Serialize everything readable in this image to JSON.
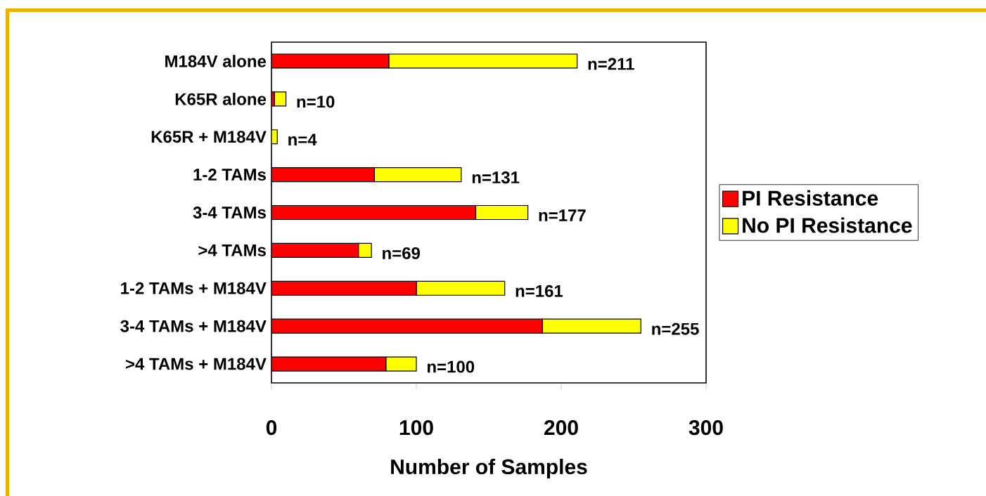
{
  "chart_data": {
    "type": "bar",
    "orientation": "horizontal",
    "stacked": true,
    "categories": [
      "M184V alone",
      "K65R alone",
      "K65R + M184V",
      "1-2 TAMs",
      "3-4 TAMs",
      ">4 TAMs",
      "1-2 TAMs + M184V",
      "3-4 TAMs + M184V",
      ">4 TAMs + M184V"
    ],
    "series": [
      {
        "name": "PI Resistance",
        "color": "#ff0000",
        "values": [
          81,
          2,
          0,
          71,
          141,
          60,
          100,
          187,
          79
        ]
      },
      {
        "name": "No PI Resistance",
        "color": "#ffff00",
        "values": [
          130,
          8,
          4,
          60,
          36,
          9,
          61,
          68,
          21
        ]
      }
    ],
    "totals": [
      "n=211",
      "n=10",
      "n=4",
      "n=131",
      "n=177",
      "n=69",
      "n=161",
      "n=255",
      "n=100"
    ],
    "xlabel": "Number of Samples",
    "xlim": [
      0,
      300
    ],
    "xticks": [
      0,
      100,
      200,
      300
    ],
    "legend": "right"
  }
}
